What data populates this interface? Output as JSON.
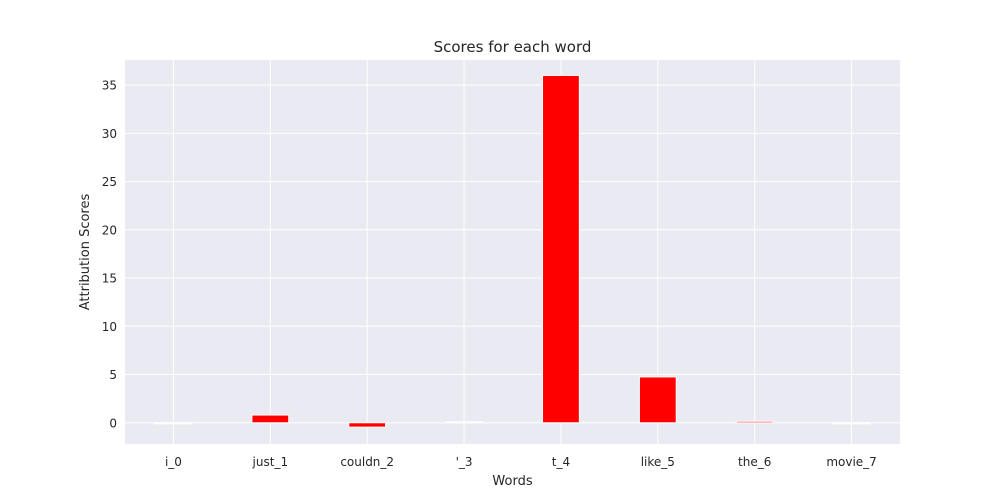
{
  "chart_data": {
    "type": "bar",
    "title": "Scores for each word",
    "xlabel": "Words",
    "ylabel": "Attribution Scores",
    "categories": [
      "i_0",
      "just_1",
      "couldn_2",
      "'_3",
      "t_4",
      "like_5",
      "the_6",
      "movie_7"
    ],
    "values": [
      -0.1,
      0.8,
      -0.45,
      0.1,
      36.0,
      4.75,
      0.15,
      -0.05
    ],
    "ylim": [
      -2.2,
      37.6
    ],
    "yticks": [
      0,
      5,
      10,
      15,
      20,
      25,
      30,
      35
    ],
    "grid": true,
    "style": {
      "plot_background": "#eaeaf2",
      "grid_color": "#ffffff",
      "bar_color": "#ff0000"
    }
  }
}
